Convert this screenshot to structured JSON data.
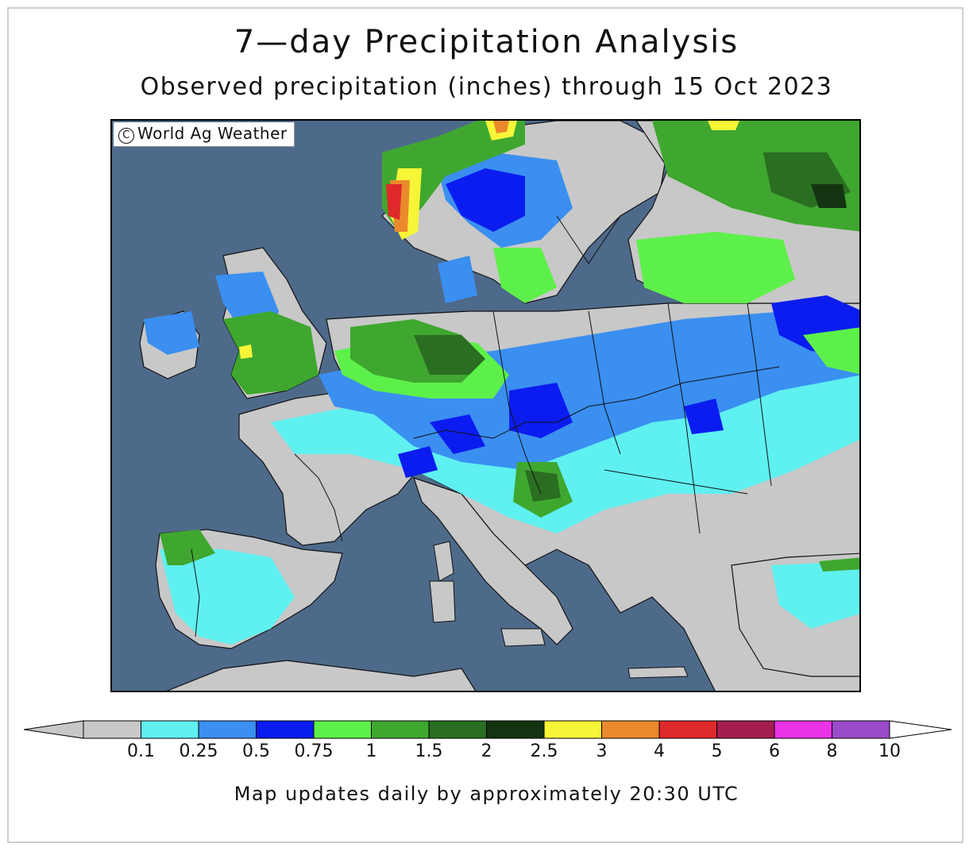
{
  "title": "7—day Precipitation Analysis",
  "subtitle": "Observed precipitation (inches) through 15 Oct 2023",
  "credit": "World Ag Weather",
  "footer": "Map updates daily by approximately 20:30 UTC",
  "legend": {
    "ticks": [
      "0.1",
      "0.25",
      "0.5",
      "0.75",
      "1",
      "1.5",
      "2",
      "2.5",
      "3",
      "4",
      "5",
      "6",
      "8",
      "10"
    ],
    "bins": [
      {
        "from": "0.1",
        "to": "0.25",
        "color": "#5ff0f0"
      },
      {
        "from": "0.25",
        "to": "0.5",
        "color": "#3a8ff0"
      },
      {
        "from": "0.5",
        "to": "0.75",
        "color": "#0b1cf0"
      },
      {
        "from": "0.75",
        "to": "1",
        "color": "#5ef04a"
      },
      {
        "from": "1",
        "to": "1.5",
        "color": "#3fa72f"
      },
      {
        "from": "1.5",
        "to": "2",
        "color": "#2a6e21"
      },
      {
        "from": "2",
        "to": "2.5",
        "color": "#133410"
      },
      {
        "from": "2.5",
        "to": "3",
        "color": "#f6f538"
      },
      {
        "from": "3",
        "to": "4",
        "color": "#ea8a2c"
      },
      {
        "from": "4",
        "to": "5",
        "color": "#e0292a"
      },
      {
        "from": "5",
        "to": "6",
        "color": "#a61d51"
      },
      {
        "from": "6",
        "to": "8",
        "color": "#ea32e6"
      },
      {
        "from": "8",
        "to": "10",
        "color": "#9a4bc8"
      }
    ],
    "below_color": "#c8c8c8",
    "above_color": "#ffffff"
  },
  "colors": {
    "sea": "#4e6a8a",
    "land_dry": "#c8c8c8"
  }
}
